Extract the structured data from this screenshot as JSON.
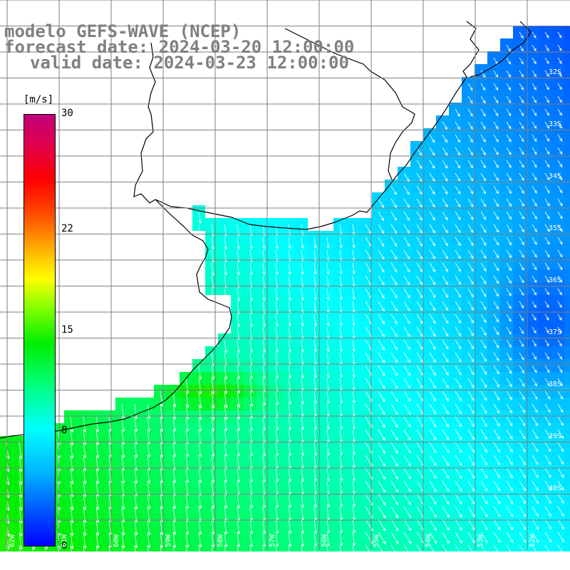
{
  "titles": {
    "model": "modelo GEFS-WAVE (NCEP)",
    "forecast": "forecast date: 2024-03-20 12:00:00",
    "valid": "valid date: 2024-03-23 12:00:00"
  },
  "colorbar": {
    "unit": "[m/s]",
    "ticks": [
      {
        "label": "30",
        "value": 30
      },
      {
        "label": "22",
        "value": 22
      },
      {
        "label": "15",
        "value": 15
      },
      {
        "label": "8",
        "value": 8
      },
      {
        "label": "0",
        "value": 0
      }
    ],
    "range": [
      0,
      30
    ]
  },
  "map": {
    "lat_labels": [
      "32S",
      "33S",
      "34S",
      "35S",
      "36S",
      "37S",
      "38S",
      "39S",
      "40S"
    ],
    "lon_labels": [
      "62W",
      "61W",
      "60W",
      "59W",
      "58W",
      "57W",
      "56W",
      "55W",
      "54W",
      "53W",
      "52W"
    ],
    "colors": {
      "land": "#ffffff",
      "coast": "#000000",
      "grid": "#7f7f7f",
      "arrow": "#ffffff"
    }
  }
}
